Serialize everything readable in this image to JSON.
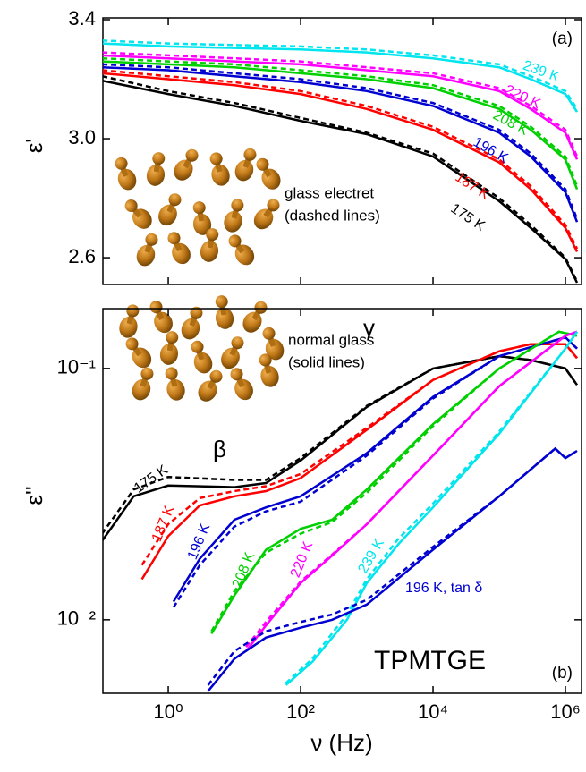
{
  "chart_data": [
    {
      "type": "line",
      "panel_label": "(a)",
      "y_label": "ε'",
      "log_x": true,
      "xlim": [
        0.103,
        1750000
      ],
      "ylim": [
        2.51,
        3.406
      ],
      "yticks": [
        2.6,
        {
          "value": 3,
          "label": "3.0"
        },
        3.4
      ],
      "annotations": [
        "glass electret",
        "(dashed lines)"
      ],
      "x": [
        0.1,
        1,
        10,
        100,
        1000,
        10000,
        100000,
        300000,
        1000000,
        1500000
      ],
      "series": [
        {
          "name": "175 K",
          "color": "#000000",
          "values": [
            3.195,
            3.15,
            3.11,
            3.06,
            3.015,
            2.94,
            2.79,
            2.7,
            2.595,
            2.516
          ],
          "dashed_values": [
            3.21,
            3.16,
            3.12,
            3.07,
            3.02,
            2.95,
            2.8,
            2.71,
            2.6,
            2.52
          ]
        },
        {
          "name": "187 K",
          "color": "#ff0000",
          "values": [
            3.22,
            3.2,
            3.18,
            3.15,
            3.1,
            3.03,
            2.92,
            2.83,
            2.7,
            2.62
          ],
          "dashed_values": [
            3.23,
            3.21,
            3.19,
            3.16,
            3.11,
            3.04,
            2.93,
            2.84,
            2.71,
            2.63
          ]
        },
        {
          "name": "196 K",
          "color": "#0000d0",
          "values": [
            3.24,
            3.23,
            3.21,
            3.19,
            3.16,
            3.11,
            3.02,
            2.94,
            2.82,
            2.72
          ],
          "dashed_values": [
            3.25,
            3.24,
            3.22,
            3.2,
            3.17,
            3.12,
            3.03,
            2.95,
            2.83,
            2.73
          ]
        },
        {
          "name": "208 K",
          "color": "#00d000",
          "values": [
            3.26,
            3.25,
            3.24,
            3.22,
            3.2,
            3.17,
            3.1,
            3.03,
            2.93,
            2.83
          ],
          "dashed_values": [
            3.27,
            3.26,
            3.25,
            3.23,
            3.21,
            3.18,
            3.11,
            3.04,
            2.94,
            2.84
          ]
        },
        {
          "name": "220 K",
          "color": "#ff00ff",
          "values": [
            3.28,
            3.27,
            3.26,
            3.25,
            3.23,
            3.21,
            3.16,
            3.1,
            3.02,
            2.93
          ],
          "dashed_values": [
            3.29,
            3.28,
            3.27,
            3.26,
            3.24,
            3.22,
            3.17,
            3.11,
            3.03,
            2.94
          ]
        },
        {
          "name": "239 K",
          "color": "#00e5ee",
          "values": [
            3.32,
            3.31,
            3.305,
            3.3,
            3.29,
            3.27,
            3.24,
            3.2,
            3.15,
            3.09
          ],
          "dashed_values": [
            3.33,
            3.32,
            3.315,
            3.31,
            3.3,
            3.28,
            3.25,
            3.21,
            3.16,
            3.1
          ]
        }
      ]
    },
    {
      "type": "line",
      "panel_label": "(b)",
      "y_label": "ε''",
      "x_label": "ν (Hz)",
      "log_x": true,
      "log_y": true,
      "xlim": [
        0.103,
        1750000
      ],
      "ylim": [
        0.0051,
        0.173
      ],
      "xticks": [
        {
          "value": 1,
          "label": "10⁰"
        },
        {
          "value": 100,
          "label": "10²"
        },
        {
          "value": 10000,
          "label": "10⁴"
        },
        {
          "value": 1000000,
          "label": "10⁶"
        }
      ],
      "yticks": [
        {
          "value": 0.01,
          "label": "10⁻²"
        },
        {
          "value": 0.1,
          "label": "10⁻¹"
        }
      ],
      "annotations": [
        "normal glass",
        "(solid lines)",
        "β",
        "γ",
        "TPMTGE"
      ],
      "series": [
        {
          "name": "175 K",
          "color": "#000000",
          "x": [
            0.1,
            0.3,
            1,
            10,
            30,
            100,
            1000,
            10000,
            100000,
            300000,
            1000000,
            1500000
          ],
          "values": [
            0.0206,
            0.031,
            0.0342,
            0.0337,
            0.035,
            0.043,
            0.0703,
            0.1,
            0.112,
            0.108,
            0.1,
            0.086
          ],
          "dashed_values": [
            0.022,
            0.033,
            0.037,
            0.036,
            0.036,
            0.044,
            0.071,
            0.1,
            0.112,
            0.108,
            0.1,
            0.086
          ]
        },
        {
          "name": "187 K",
          "color": "#ff0000",
          "x": [
            0.4,
            1,
            3,
            10,
            30,
            100,
            1000,
            10000,
            100000,
            300000,
            1000000,
            1500000
          ],
          "values": [
            0.0145,
            0.0215,
            0.0285,
            0.031,
            0.0325,
            0.0366,
            0.057,
            0.09,
            0.117,
            0.125,
            0.125,
            0.11
          ],
          "dashed_values": [
            0.0165,
            0.024,
            0.0305,
            0.0325,
            0.034,
            0.038,
            0.058,
            0.09,
            0.117,
            0.125,
            0.125,
            0.11
          ]
        },
        {
          "name": "196 K",
          "color": "#0000d0",
          "x": [
            1.2,
            3,
            10,
            30,
            100,
            1000,
            10000,
            100000,
            1000000,
            1500000
          ],
          "values": [
            0.0118,
            0.0175,
            0.025,
            0.028,
            0.031,
            0.046,
            0.077,
            0.112,
            0.133,
            0.12
          ],
          "dashed_values": [
            0.0112,
            0.0165,
            0.0235,
            0.027,
            0.0295,
            0.045,
            0.076,
            0.112,
            0.133,
            0.12
          ]
        },
        {
          "name": "208 K",
          "color": "#00d000",
          "x": [
            4.5,
            10,
            30,
            100,
            300,
            1000,
            10000,
            100000,
            800000,
            1500000
          ],
          "values": [
            0.0088,
            0.0125,
            0.019,
            0.023,
            0.025,
            0.033,
            0.06,
            0.1,
            0.14,
            0.135
          ],
          "dashed_values": [
            0.009,
            0.013,
            0.0185,
            0.022,
            0.0245,
            0.032,
            0.059,
            0.1,
            0.14,
            0.135
          ]
        },
        {
          "name": "220 K",
          "color": "#ff00ff",
          "x": [
            15,
            30,
            100,
            300,
            1000,
            10000,
            100000,
            1000000,
            1500000
          ],
          "values": [
            0.0075,
            0.0095,
            0.014,
            0.018,
            0.024,
            0.045,
            0.085,
            0.135,
            0.14
          ],
          "dashed_values": [
            0.0078,
            0.0098,
            0.0142,
            0.0182,
            0.024,
            0.045,
            0.085,
            0.135,
            0.14
          ]
        },
        {
          "name": "239 K",
          "color": "#00e5ee",
          "x": [
            60,
            150,
            500,
            1000,
            3000,
            10000,
            100000,
            1000000,
            1500000
          ],
          "values": [
            0.0055,
            0.0068,
            0.01,
            0.014,
            0.02,
            0.028,
            0.055,
            0.12,
            0.14
          ],
          "dashed_values": [
            0.0056,
            0.007,
            0.0105,
            0.0145,
            0.021,
            0.029,
            0.056,
            0.12,
            0.14
          ]
        },
        {
          "name": "196 K, tan δ",
          "color": "#0000d0",
          "x": [
            4,
            10,
            30,
            100,
            300,
            1000,
            10000,
            100000,
            700000,
            1000000,
            1500000
          ],
          "values": [
            0.0052,
            0.007,
            0.0085,
            0.0093,
            0.01,
            0.0115,
            0.019,
            0.031,
            0.048,
            0.044,
            0.047
          ],
          "dashed_values": [
            0.0055,
            0.0075,
            0.009,
            0.0098,
            0.0105,
            0.012,
            0.0195,
            0.031,
            0.048,
            0.044,
            0.047
          ]
        }
      ]
    }
  ]
}
